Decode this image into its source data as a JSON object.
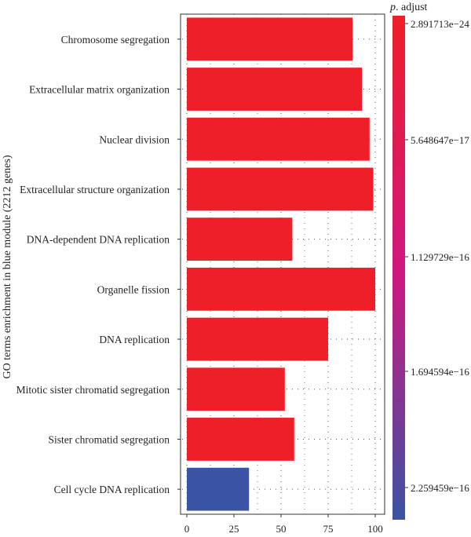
{
  "chart_data": {
    "type": "bar",
    "orientation": "horizontal",
    "ylabel": "GO terms enrichment in blue module (2212 genes)",
    "xlabel": "",
    "xlim": [
      0,
      100
    ],
    "xticks": [
      0,
      25,
      50,
      75,
      100
    ],
    "x_tick_labels": [
      "0",
      "25",
      "50",
      "75",
      "100"
    ],
    "grid": true,
    "categories": [
      "Chromosome segregation",
      "Extracellular matrix organization",
      "Nuclear division",
      "Extracellular structure organization",
      "DNA-dependent DNA replication",
      "Organelle fission",
      "DNA replication",
      "Mitotic sister chromatid segregation",
      "Sister chromatid segregation",
      "Cell cycle DNA replication"
    ],
    "values": [
      88,
      93,
      97,
      99,
      56,
      100,
      75,
      52,
      57,
      33
    ],
    "colors": [
      "#ee1f28",
      "#ee1f28",
      "#ee1f28",
      "#ee1f28",
      "#ee1f28",
      "#ee1f28",
      "#ee1f28",
      "#ee1f28",
      "#ee1f28",
      "#3b53a4"
    ],
    "colorbar": {
      "title_italic": "p",
      "title_rest": ". adjust",
      "labels": [
        "2.891713e−24",
        "5.648647e−17",
        "1.129729e−16",
        "1.694594e−16",
        "2.259459e−16"
      ],
      "color_top": "#ee1f28",
      "color_mid": "#d0177e",
      "color_bottom": "#3b53a4"
    }
  }
}
